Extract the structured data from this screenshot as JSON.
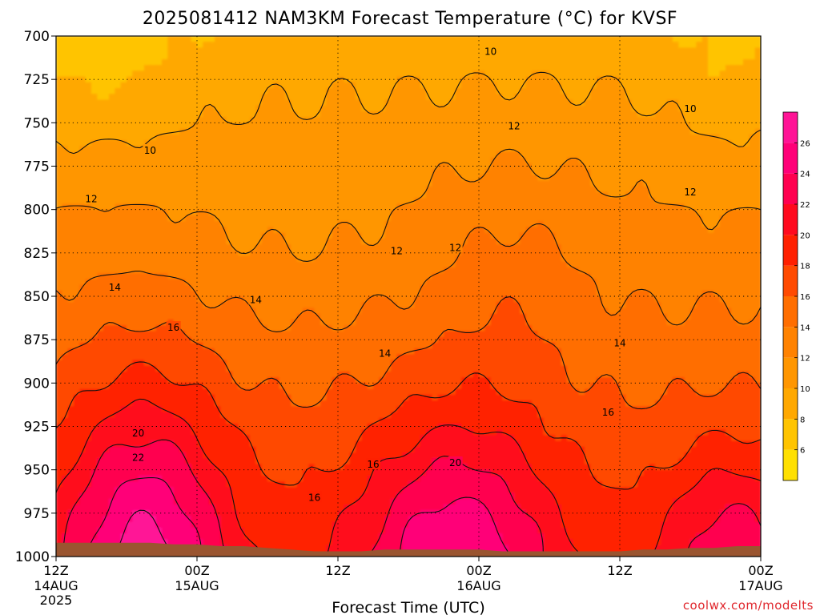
{
  "chart_data": {
    "type": "heatmap",
    "title": "2025081412 NAM3KM Forecast Temperature (°C) for KVSF",
    "xlabel": "Forecast Time (UTC)",
    "ylabel": "",
    "x_ticks": [
      {
        "top": "12Z",
        "bottom": "14AUG",
        "extra": "2025"
      },
      {
        "top": "00Z",
        "bottom": "15AUG",
        "extra": ""
      },
      {
        "top": "12Z",
        "bottom": "",
        "extra": ""
      },
      {
        "top": "00Z",
        "bottom": "16AUG",
        "extra": ""
      },
      {
        "top": "12Z",
        "bottom": "",
        "extra": ""
      },
      {
        "top": "00Z",
        "bottom": "17AUG",
        "extra": ""
      }
    ],
    "x_range_hours": [
      0,
      60
    ],
    "y_ticks": [
      "700",
      "725",
      "750",
      "775",
      "800",
      "825",
      "850",
      "875",
      "900",
      "925",
      "950",
      "975",
      "1000"
    ],
    "ylim": [
      1000,
      700
    ],
    "grid": true,
    "colorbar": {
      "levels": [
        4,
        6,
        8,
        10,
        12,
        14,
        16,
        18,
        20,
        22,
        24,
        26,
        28
      ],
      "tick_labels": [
        "6",
        "8",
        "10",
        "12",
        "14",
        "16",
        "18",
        "20",
        "22",
        "24",
        "26"
      ],
      "colors": [
        "#ffe000",
        "#ffc400",
        "#ffa800",
        "#ff9600",
        "#ff8200",
        "#ff6e00",
        "#ff4a00",
        "#ff2000",
        "#ff0a1e",
        "#ff0050",
        "#ff0078",
        "#ff1496"
      ]
    },
    "contour_labels": [
      {
        "text": "10",
        "hour": 37,
        "p": 709
      },
      {
        "text": "10",
        "hour": 54,
        "p": 742
      },
      {
        "text": "10",
        "hour": 8,
        "p": 766
      },
      {
        "text": "12",
        "hour": 39,
        "p": 752
      },
      {
        "text": "12",
        "hour": 3,
        "p": 794
      },
      {
        "text": "12",
        "hour": 29,
        "p": 824
      },
      {
        "text": "12",
        "hour": 34,
        "p": 822
      },
      {
        "text": "12",
        "hour": 54,
        "p": 790
      },
      {
        "text": "14",
        "hour": 5,
        "p": 845
      },
      {
        "text": "14",
        "hour": 17,
        "p": 852
      },
      {
        "text": "14",
        "hour": 28,
        "p": 883
      },
      {
        "text": "14",
        "hour": 48,
        "p": 877
      },
      {
        "text": "16",
        "hour": 10,
        "p": 868
      },
      {
        "text": "16",
        "hour": 47,
        "p": 917
      },
      {
        "text": "16",
        "hour": 27,
        "p": 947
      },
      {
        "text": "16",
        "hour": 22,
        "p": 966
      },
      {
        "text": "20",
        "hour": 7,
        "p": 929
      },
      {
        "text": "20",
        "hour": 34,
        "p": 946
      },
      {
        "text": "22",
        "hour": 7,
        "p": 943
      }
    ],
    "surface_pressure_hpa": {
      "hours": [
        0,
        2,
        4,
        6,
        8,
        10,
        12,
        14,
        16,
        18,
        20,
        22,
        24,
        26,
        28,
        30,
        32,
        34,
        36,
        38,
        40,
        42,
        44,
        46,
        48,
        50,
        52,
        54,
        56,
        58,
        60
      ],
      "values": [
        992,
        992,
        992,
        992,
        992,
        993,
        993,
        994,
        994,
        995,
        996,
        997,
        997,
        997,
        996,
        996,
        996,
        996,
        996,
        997,
        997,
        997,
        997,
        997,
        997,
        996,
        996,
        995,
        995,
        994,
        994
      ]
    }
  },
  "credit": "coolwx.com/modelts",
  "colors": {
    "ground": "#9a5530",
    "contour": "#111111",
    "frame": "#000000"
  }
}
